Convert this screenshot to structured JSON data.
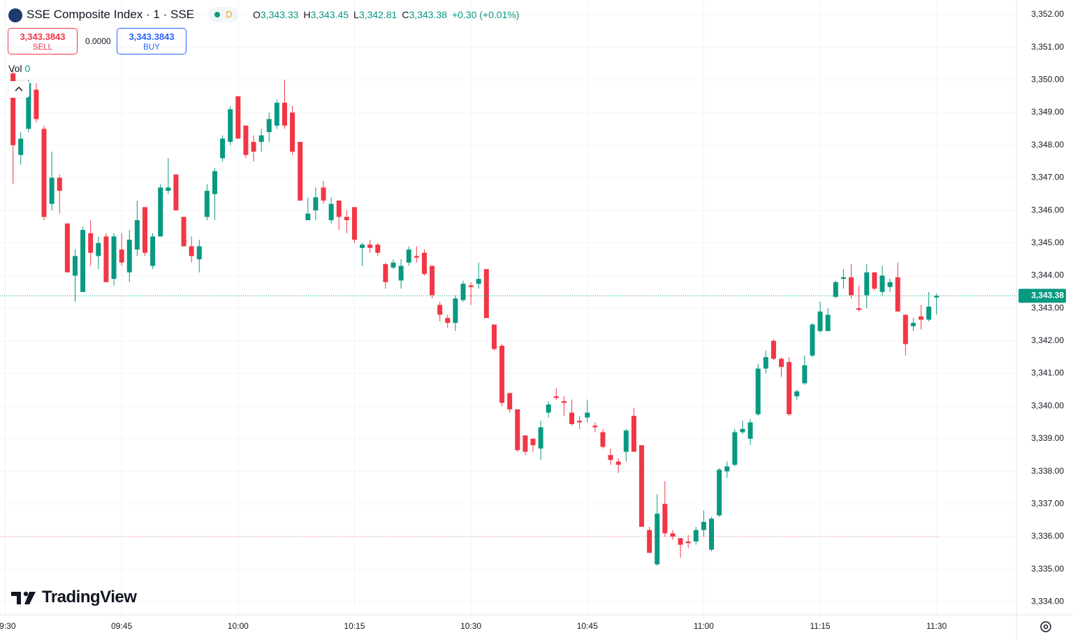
{
  "header": {
    "title": "SSE Composite Index · 1 · SSE",
    "badge": "D",
    "open_key": "O",
    "open": "3,343.33",
    "high_key": "H",
    "high": "3,343.45",
    "low_key": "L",
    "low": "3,342.81",
    "close_key": "C",
    "close": "3,343.38",
    "change": "+0.30 (+0.01%)"
  },
  "trade": {
    "sell_price": "3,343.3843",
    "sell_label": "SELL",
    "spread": "0.0000",
    "buy_price": "3,343.3843",
    "buy_label": "BUY"
  },
  "volume": {
    "label": "Vol",
    "value": "0"
  },
  "brand": "TradingView",
  "chart_data": {
    "type": "candlestick",
    "up_color": "#089981",
    "down_color": "#f23645",
    "grid": true,
    "x": [
      "09:31",
      "09:32",
      "09:33",
      "09:34",
      "09:35",
      "09:36",
      "09:37",
      "09:38",
      "09:39",
      "09:40",
      "09:41",
      "09:42",
      "09:43",
      "09:44",
      "09:45",
      "09:46",
      "09:47",
      "09:48",
      "09:49",
      "09:50",
      "09:51",
      "09:52",
      "09:53",
      "09:54",
      "09:55",
      "09:56",
      "09:57",
      "09:58",
      "09:59",
      "10:00",
      "10:01",
      "10:02",
      "10:03",
      "10:04",
      "10:05",
      "10:06",
      "10:07",
      "10:08",
      "10:09",
      "10:10",
      "10:11",
      "10:12",
      "10:13",
      "10:14",
      "10:15",
      "10:16",
      "10:17",
      "10:18",
      "10:19",
      "10:20",
      "10:21",
      "10:22",
      "10:23",
      "10:24",
      "10:25",
      "10:26",
      "10:27",
      "10:28",
      "10:29",
      "10:30",
      "10:31",
      "10:32",
      "10:33",
      "10:34",
      "10:35",
      "10:36",
      "10:37",
      "10:38",
      "10:39",
      "10:40",
      "10:41",
      "10:42",
      "10:43",
      "10:44",
      "10:45",
      "10:46",
      "10:47",
      "10:48",
      "10:49",
      "10:50",
      "10:51",
      "10:52",
      "10:53",
      "10:54",
      "10:55",
      "10:56",
      "10:57",
      "10:58",
      "10:59",
      "11:00",
      "11:01",
      "11:02",
      "11:03",
      "11:04",
      "11:05",
      "11:06",
      "11:07",
      "11:08",
      "11:09",
      "11:10",
      "11:11",
      "11:12",
      "11:13",
      "11:14",
      "11:15",
      "11:16",
      "11:17",
      "11:18",
      "11:19",
      "11:20",
      "11:21",
      "11:22",
      "11:23",
      "11:24",
      "11:25",
      "11:26",
      "11:27",
      "11:28",
      "11:29",
      "11:30"
    ],
    "series": [
      {
        "open": [
          3350.2,
          3347.7,
          3348.5,
          3349.7,
          3348.5,
          3346.2,
          3347.0,
          3345.6,
          3344.0,
          3343.5,
          3345.3,
          3344.6,
          3345.2,
          3343.9,
          3344.8,
          3344.1,
          3344.8,
          3346.1,
          3344.3,
          3345.2,
          3346.6,
          3347.1,
          3345.8,
          3344.9,
          3344.5,
          3345.8,
          3346.5,
          3347.6,
          3348.1,
          3349.5,
          3348.6,
          3348.1,
          3348.1,
          3348.4,
          3348.6,
          3349.3,
          3349.0,
          3348.1,
          3345.7,
          3346.0,
          3346.7,
          3345.7,
          3346.3,
          3345.8,
          3346.1,
          3344.85,
          3344.95,
          3344.95,
          3344.35,
          3344.25,
          3343.85,
          3344.4,
          3344.6,
          3344.7,
          3344.3,
          3343.1,
          3342.7,
          3342.55,
          3343.25,
          3343.7,
          3343.75,
          3344.2,
          3342.5,
          3341.85,
          3340.4,
          3339.9,
          3339.1,
          3339.0,
          3338.7,
          3339.8,
          3340.3,
          3340.15,
          3339.8,
          3339.55,
          3339.65,
          3339.4,
          3339.2,
          3338.5,
          3338.3,
          3338.6,
          3339.7,
          3338.8,
          3336.2,
          3335.15,
          3337.0,
          3336.1,
          3335.95,
          3335.85,
          3335.85,
          3336.2,
          3335.6,
          3336.65,
          3338.0,
          3338.2,
          3339.2,
          3339.0,
          3339.75,
          3341.15,
          3342.0,
          3341.45,
          3341.35,
          3340.3,
          3340.7,
          3341.55,
          3342.3,
          3342.3,
          3343.35,
          3343.9,
          3343.95,
          3343.0,
          3343.4,
          3344.1,
          3343.5,
          3343.65,
          3343.95,
          3342.8,
          3342.45,
          3342.75,
          3342.65,
          3343.33
        ],
        "high": [
          3350.3,
          3348.4,
          3350.0,
          3349.9,
          3348.6,
          3347.8,
          3347.1,
          3345.6,
          3344.8,
          3345.5,
          3345.7,
          3345.2,
          3345.3,
          3345.3,
          3345.3,
          3345.4,
          3346.3,
          3346.1,
          3345.3,
          3346.8,
          3347.6,
          3347.1,
          3345.8,
          3345.2,
          3345.1,
          3346.8,
          3347.3,
          3348.3,
          3349.2,
          3349.5,
          3348.6,
          3348.3,
          3348.5,
          3349.0,
          3349.4,
          3350.0,
          3349.2,
          3348.1,
          3346.4,
          3346.7,
          3346.9,
          3346.4,
          3346.3,
          3346.0,
          3346.1,
          3345.0,
          3345.1,
          3345.0,
          3344.4,
          3344.5,
          3344.5,
          3344.9,
          3344.9,
          3344.8,
          3344.3,
          3343.2,
          3342.8,
          3343.4,
          3343.85,
          3343.8,
          3344.4,
          3344.2,
          3342.5,
          3341.9,
          3340.4,
          3339.9,
          3339.1,
          3339.0,
          3339.55,
          3340.15,
          3340.55,
          3340.3,
          3340.2,
          3339.7,
          3340.2,
          3339.5,
          3339.3,
          3338.7,
          3338.4,
          3339.3,
          3339.95,
          3338.8,
          3336.3,
          3337.3,
          3337.7,
          3336.2,
          3335.95,
          3336.05,
          3336.3,
          3336.8,
          3336.6,
          3338.1,
          3338.3,
          3339.3,
          3339.55,
          3339.6,
          3341.3,
          3341.7,
          3342.05,
          3341.5,
          3341.5,
          3340.5,
          3341.55,
          3342.55,
          3343.2,
          3343.0,
          3343.85,
          3344.2,
          3344.35,
          3343.7,
          3344.35,
          3344.1,
          3344.3,
          3343.9,
          3344.4,
          3342.8,
          3342.7,
          3343.1,
          3343.5,
          3343.45
        ],
        "low": [
          3346.8,
          3347.4,
          3348.4,
          3348.7,
          3345.7,
          3346.0,
          3345.9,
          3344.1,
          3343.2,
          3343.5,
          3344.3,
          3344.2,
          3343.8,
          3343.7,
          3344.3,
          3343.8,
          3344.6,
          3344.6,
          3344.2,
          3345.2,
          3346.5,
          3346.0,
          3344.9,
          3344.4,
          3344.1,
          3345.7,
          3345.7,
          3347.5,
          3348.0,
          3348.2,
          3347.6,
          3347.5,
          3347.8,
          3348.1,
          3348.5,
          3348.5,
          3347.7,
          3346.3,
          3345.7,
          3345.7,
          3346.2,
          3345.6,
          3345.4,
          3345.3,
          3345.0,
          3344.3,
          3344.7,
          3344.6,
          3343.6,
          3344.2,
          3343.6,
          3344.3,
          3344.4,
          3344.0,
          3343.3,
          3342.6,
          3342.4,
          3342.3,
          3343.2,
          3343.1,
          3343.6,
          3342.7,
          3341.7,
          3340.0,
          3339.8,
          3338.6,
          3338.5,
          3338.6,
          3338.35,
          3339.65,
          3340.2,
          3339.7,
          3339.4,
          3339.3,
          3339.5,
          3339.2,
          3338.7,
          3338.2,
          3337.95,
          3338.3,
          3338.6,
          3336.3,
          3335.5,
          3335.1,
          3336.0,
          3335.9,
          3335.35,
          3335.65,
          3335.75,
          3336.0,
          3335.55,
          3336.6,
          3337.8,
          3338.15,
          3339.15,
          3338.8,
          3339.7,
          3341.0,
          3341.4,
          3340.9,
          3339.7,
          3340.2,
          3340.65,
          3341.5,
          3342.25,
          3342.3,
          3343.3,
          3343.6,
          3343.3,
          3342.9,
          3343.0,
          3343.55,
          3343.4,
          3343.5,
          3342.9,
          3341.55,
          3342.3,
          3342.35,
          3342.6,
          3342.81
        ],
        "close": [
          3348.0,
          3348.2,
          3349.9,
          3348.8,
          3345.8,
          3347.0,
          3346.6,
          3344.1,
          3344.6,
          3345.4,
          3344.7,
          3345.0,
          3343.8,
          3345.2,
          3344.4,
          3345.1,
          3345.7,
          3344.7,
          3345.2,
          3346.7,
          3346.7,
          3346.0,
          3344.9,
          3344.6,
          3344.9,
          3346.6,
          3347.2,
          3348.2,
          3349.1,
          3348.2,
          3347.7,
          3347.8,
          3348.3,
          3348.8,
          3349.3,
          3348.6,
          3347.8,
          3346.3,
          3345.9,
          3346.4,
          3346.3,
          3346.2,
          3345.8,
          3345.7,
          3345.1,
          3344.95,
          3344.85,
          3344.7,
          3343.8,
          3344.4,
          3344.3,
          3344.8,
          3344.55,
          3344.05,
          3343.4,
          3342.8,
          3342.55,
          3343.3,
          3343.75,
          3343.65,
          3343.9,
          3342.7,
          3341.75,
          3340.1,
          3339.9,
          3338.65,
          3338.6,
          3338.8,
          3339.35,
          3340.05,
          3340.25,
          3340.1,
          3339.45,
          3339.5,
          3339.8,
          3339.35,
          3338.75,
          3338.35,
          3338.2,
          3339.25,
          3338.6,
          3336.3,
          3335.5,
          3336.7,
          3336.1,
          3336.0,
          3335.75,
          3335.8,
          3336.2,
          3336.45,
          3336.55,
          3338.05,
          3338.15,
          3339.2,
          3339.3,
          3339.5,
          3341.15,
          3341.5,
          3341.45,
          3341.2,
          3339.75,
          3340.45,
          3341.25,
          3342.5,
          3342.9,
          3342.8,
          3343.8,
          3343.95,
          3343.4,
          3342.95,
          3344.1,
          3343.6,
          3344.0,
          3343.8,
          3342.9,
          3341.9,
          3342.55,
          3342.65,
          3343.05,
          3343.38
        ]
      }
    ],
    "ylim": [
      3333.6,
      3352.45
    ],
    "yticks": [
      {
        "value": 3334,
        "label": "3,334.00"
      },
      {
        "value": 3335,
        "label": "3,335.00"
      },
      {
        "value": 3336,
        "label": "3,336.00"
      },
      {
        "value": 3337,
        "label": "3,337.00"
      },
      {
        "value": 3338,
        "label": "3,338.00"
      },
      {
        "value": 3339,
        "label": "3,339.00"
      },
      {
        "value": 3340,
        "label": "3,340.00"
      },
      {
        "value": 3341,
        "label": "3,341.00"
      },
      {
        "value": 3342,
        "label": "3,342.00"
      },
      {
        "value": 3343,
        "label": "3,343.00"
      },
      {
        "value": 3344,
        "label": "3,344.00"
      },
      {
        "value": 3345,
        "label": "3,345.00"
      },
      {
        "value": 3346,
        "label": "3,346.00"
      },
      {
        "value": 3347,
        "label": "3,347.00"
      },
      {
        "value": 3348,
        "label": "3,348.00"
      },
      {
        "value": 3349,
        "label": "3,349.00"
      },
      {
        "value": 3350,
        "label": "3,350.00"
      },
      {
        "value": 3351,
        "label": "3,351.00"
      },
      {
        "value": 3352,
        "label": "3,352.00"
      }
    ],
    "xticks": [
      "09:30",
      "09:45",
      "10:00",
      "10:15",
      "10:30",
      "10:45",
      "11:00",
      "11:15",
      "11:30"
    ],
    "last_price": {
      "value": 3343.38,
      "label": "3,343.38"
    },
    "reference_line": 3336.0
  }
}
